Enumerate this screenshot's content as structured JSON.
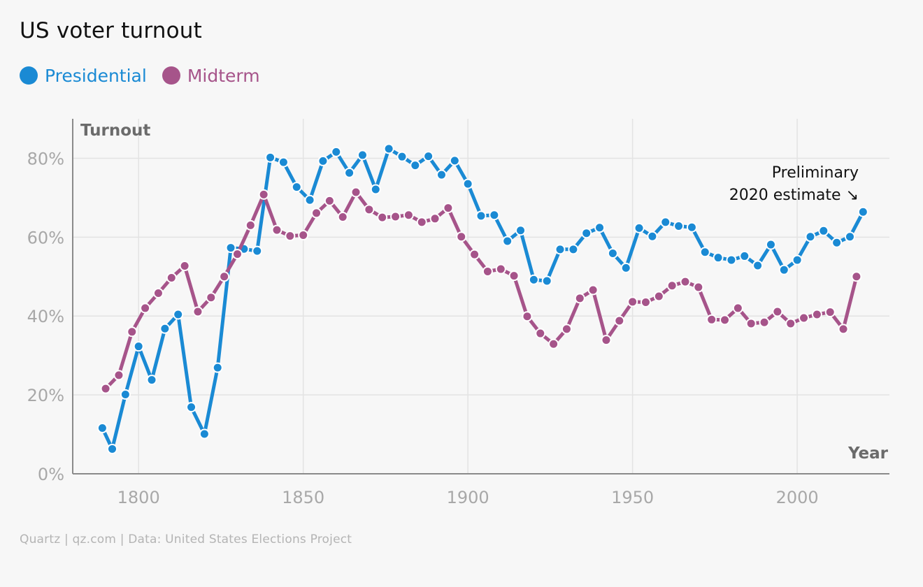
{
  "title": "US voter turnout",
  "legend": [
    {
      "label": "Presidential",
      "color": "#1a8ad4"
    },
    {
      "label": "Midterm",
      "color": "#a6548a"
    }
  ],
  "annotation": {
    "line1": "Preliminary",
    "line2": "2020 estimate ↘"
  },
  "source": "Quartz | qz.com | Data: United States Elections Project",
  "chart_data": {
    "type": "line",
    "ylabel": "Turnout",
    "xlabel": "Year",
    "xlim": [
      1780,
      2028
    ],
    "ylim": [
      0,
      90
    ],
    "xticks": [
      1800,
      1850,
      1900,
      1950,
      2000
    ],
    "yticks": [
      0,
      20,
      40,
      60,
      80
    ],
    "ytick_labels": [
      "0%",
      "20%",
      "40%",
      "60%",
      "80%"
    ],
    "grid": true,
    "series": [
      {
        "name": "Presidential",
        "color": "#1a8ad4",
        "x": [
          1789,
          1792,
          1796,
          1800,
          1804,
          1808,
          1812,
          1816,
          1820,
          1824,
          1828,
          1832,
          1836,
          1840,
          1844,
          1848,
          1852,
          1856,
          1860,
          1864,
          1868,
          1872,
          1876,
          1880,
          1884,
          1888,
          1892,
          1896,
          1900,
          1904,
          1908,
          1912,
          1916,
          1920,
          1924,
          1928,
          1932,
          1936,
          1940,
          1944,
          1948,
          1952,
          1956,
          1960,
          1964,
          1968,
          1972,
          1976,
          1980,
          1984,
          1988,
          1992,
          1996,
          2000,
          2004,
          2008,
          2012,
          2016,
          2020
        ],
        "y": [
          11.6,
          6.3,
          20.1,
          32.3,
          23.8,
          36.8,
          40.4,
          16.9,
          10.1,
          26.9,
          57.3,
          57.0,
          56.5,
          80.2,
          79.0,
          72.7,
          69.4,
          79.3,
          81.6,
          76.3,
          80.8,
          72.1,
          82.4,
          80.4,
          78.2,
          80.5,
          75.8,
          79.4,
          73.5,
          65.4,
          65.6,
          59.0,
          61.7,
          49.2,
          48.9,
          56.9,
          56.9,
          61.0,
          62.4,
          55.9,
          52.2,
          62.3,
          60.2,
          63.8,
          62.8,
          62.5,
          56.2,
          54.8,
          54.2,
          55.2,
          52.8,
          58.1,
          51.7,
          54.2,
          60.1,
          61.6,
          58.6,
          60.1,
          66.4
        ]
      },
      {
        "name": "Midterm",
        "color": "#a6548a",
        "x": [
          1790,
          1794,
          1798,
          1802,
          1806,
          1810,
          1814,
          1818,
          1822,
          1826,
          1830,
          1834,
          1838,
          1842,
          1846,
          1850,
          1854,
          1858,
          1862,
          1866,
          1870,
          1874,
          1878,
          1882,
          1886,
          1890,
          1894,
          1898,
          1902,
          1906,
          1910,
          1914,
          1918,
          1922,
          1926,
          1930,
          1934,
          1938,
          1942,
          1946,
          1950,
          1954,
          1958,
          1962,
          1966,
          1970,
          1974,
          1978,
          1982,
          1986,
          1990,
          1994,
          1998,
          2002,
          2006,
          2010,
          2014,
          2018
        ],
        "y": [
          21.6,
          25.0,
          36.0,
          42.0,
          45.8,
          49.7,
          52.7,
          41.1,
          44.7,
          50.0,
          55.7,
          63.0,
          70.8,
          61.8,
          60.3,
          60.5,
          66.1,
          69.2,
          65.1,
          71.4,
          67.0,
          65.0,
          65.2,
          65.6,
          63.8,
          64.7,
          67.4,
          60.1,
          55.6,
          51.3,
          51.9,
          50.2,
          39.9,
          35.6,
          32.9,
          36.7,
          44.5,
          46.6,
          33.9,
          38.8,
          43.6,
          43.5,
          45.0,
          47.7,
          48.7,
          47.3,
          39.1,
          39.0,
          42.0,
          38.1,
          38.4,
          41.1,
          38.1,
          39.5,
          40.4,
          41.0,
          36.7,
          50.0
        ]
      }
    ]
  }
}
